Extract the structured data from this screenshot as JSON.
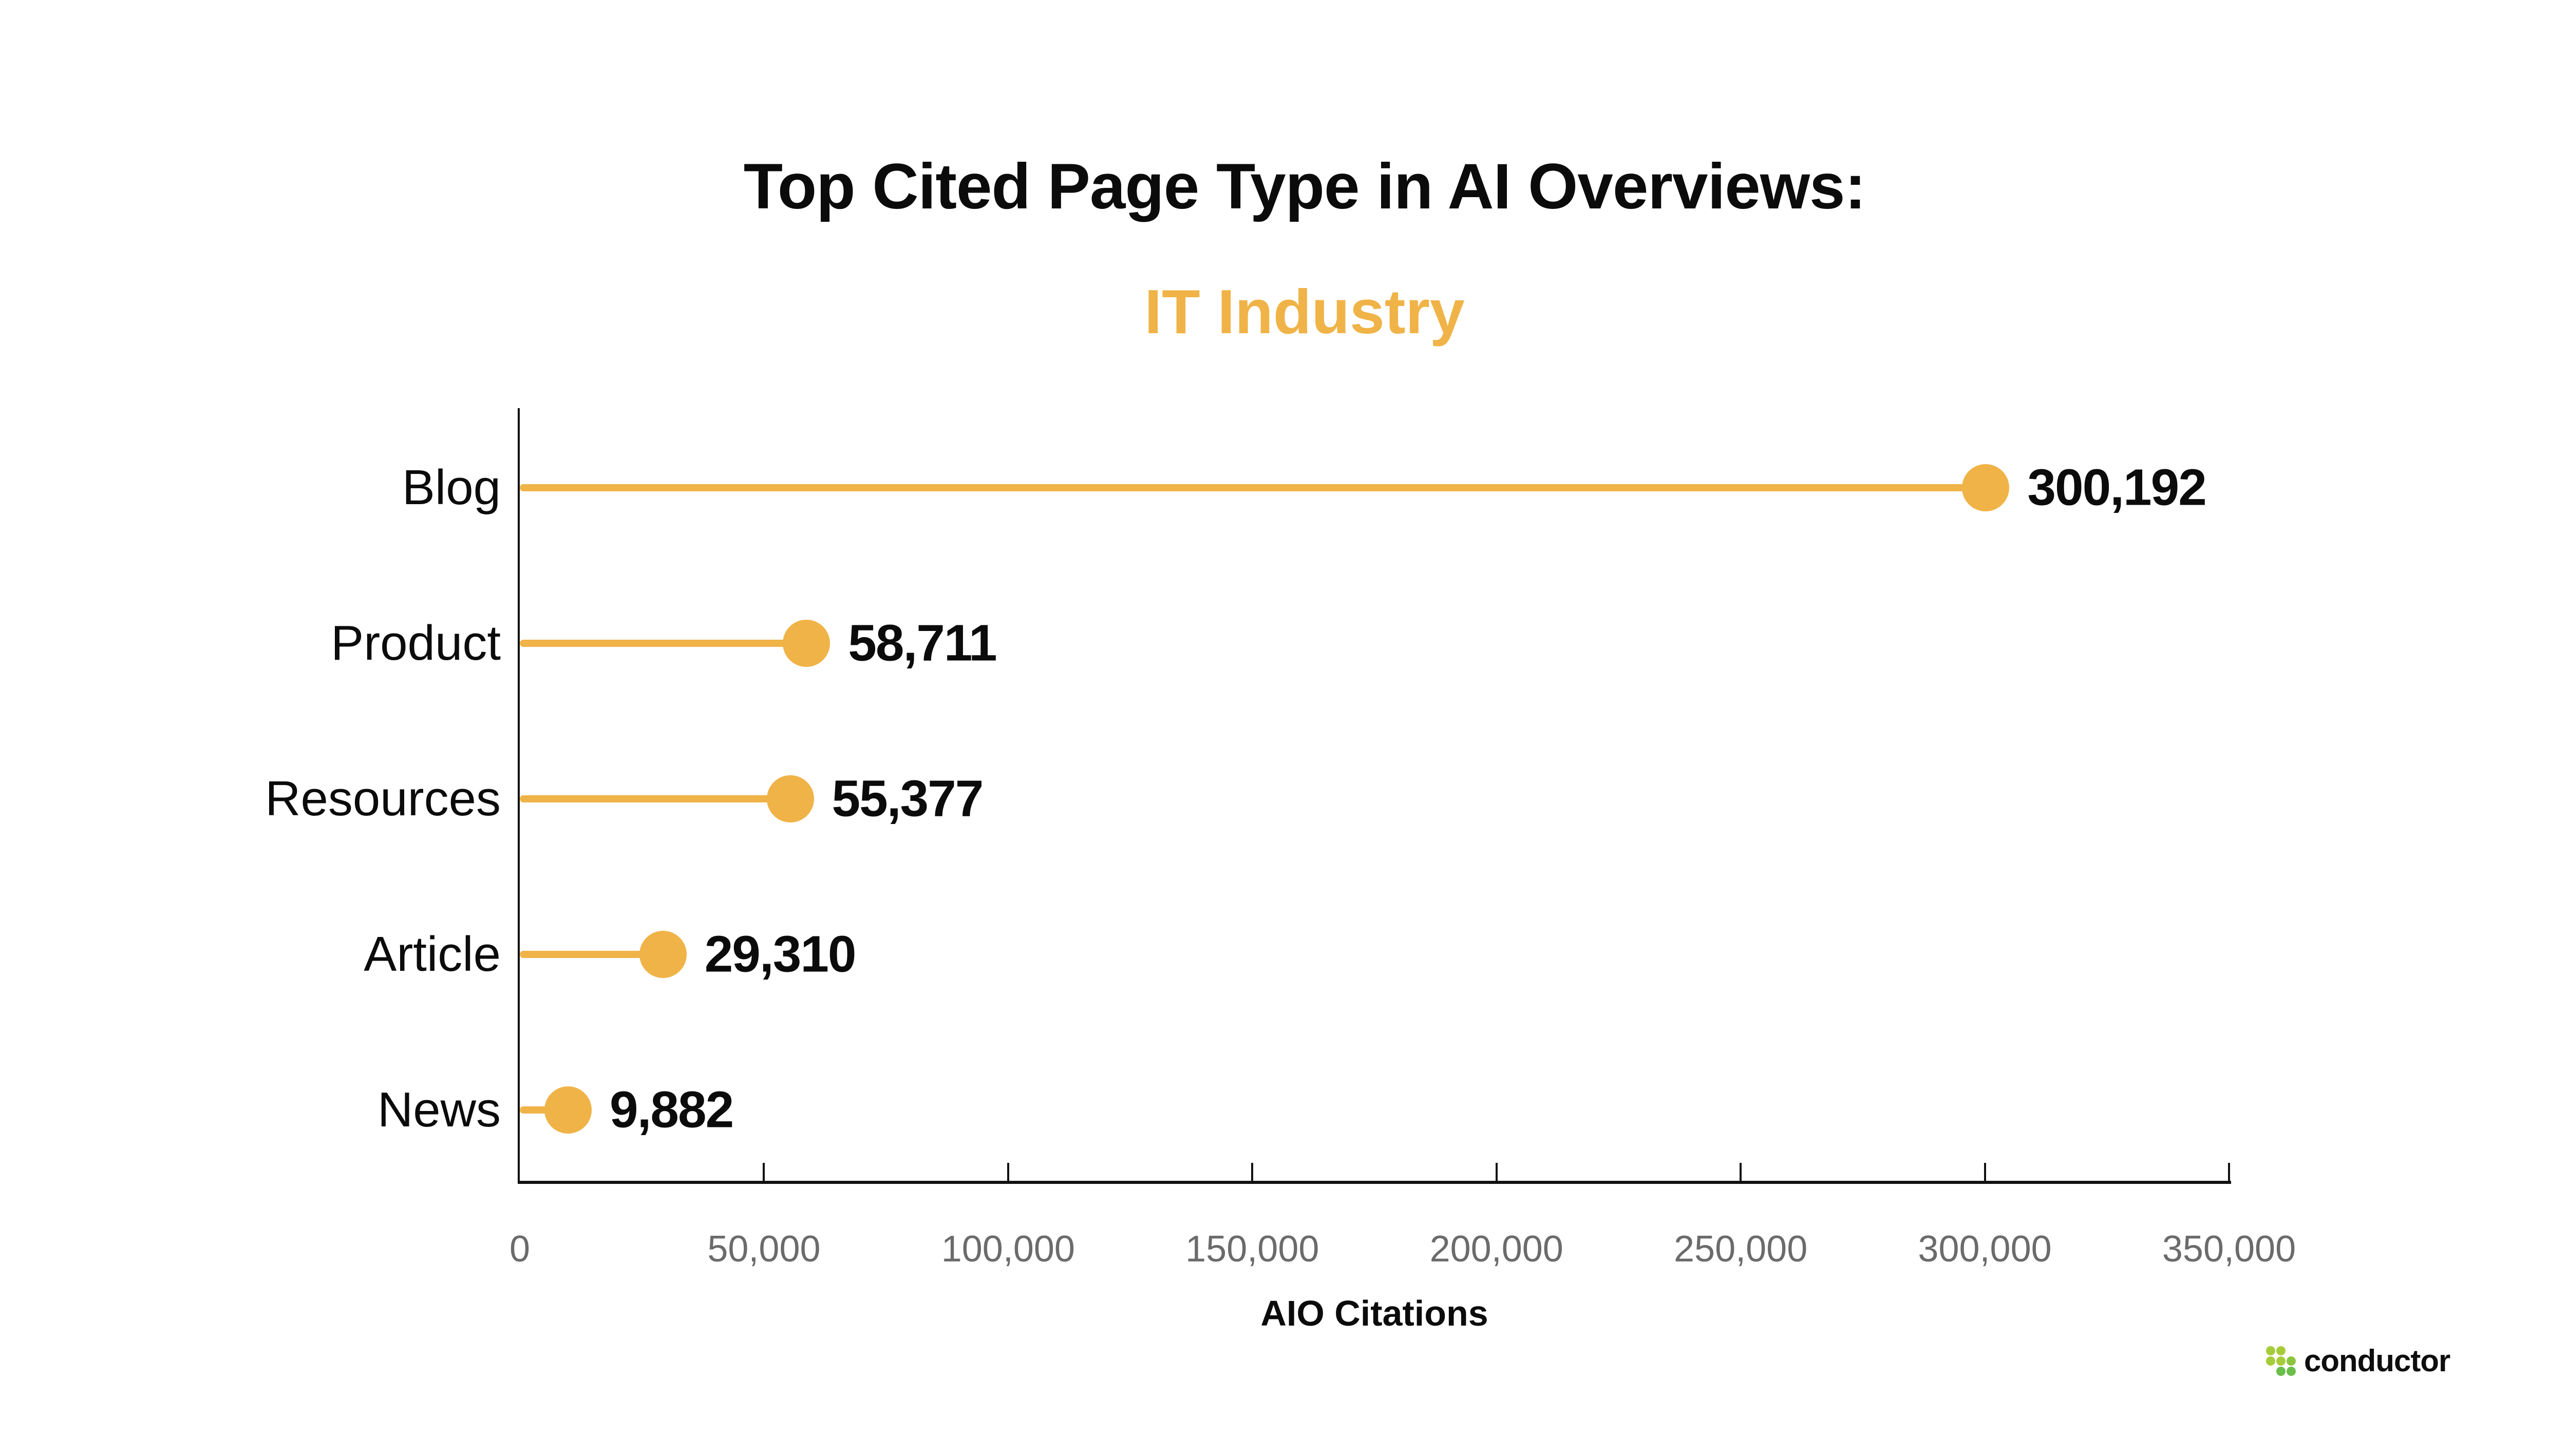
{
  "chart_data": {
    "type": "bar",
    "variant": "lollipop-horizontal",
    "title": "Top Cited Page Type in AI Overviews:",
    "subtitle": "IT Industry",
    "categories": [
      "Blog",
      "Product",
      "Resources",
      "Article",
      "News"
    ],
    "values": [
      300192,
      58711,
      55377,
      29310,
      9882
    ],
    "value_labels": [
      "300,192",
      "58,711",
      "55,377",
      "29,310",
      "9,882"
    ],
    "xlabel": "AIO Citations",
    "xlim": [
      0,
      350000
    ],
    "x_ticks": [
      0,
      50000,
      100000,
      150000,
      200000,
      250000,
      300000,
      350000
    ],
    "x_tick_labels": [
      "0",
      "50,000",
      "100,000",
      "150,000",
      "200,000",
      "250,000",
      "300,000",
      "350,000"
    ],
    "accent_color": "#F0B347",
    "axis_color": "#111111",
    "tick_label_color": "#6B6B6B",
    "category_label_color": "#0b0b0b",
    "value_label_color": "#0b0b0b",
    "grid": false,
    "legend": "none",
    "background": "#ffffff"
  },
  "branding": {
    "logo_text": "conductor",
    "logo_dots": [
      {
        "row": 0,
        "col": 0,
        "color": "#A7CC3B"
      },
      {
        "row": 0,
        "col": 1,
        "color": "#A7CC3B"
      },
      {
        "row": 1,
        "col": 0,
        "color": "#A7CC3B"
      },
      {
        "row": 1,
        "col": 1,
        "color": "#A7CC3B"
      },
      {
        "row": 1,
        "col": 2,
        "color": "#8BC53F"
      },
      {
        "row": 2,
        "col": 1,
        "color": "#6ABE4A"
      },
      {
        "row": 2,
        "col": 2,
        "color": "#6ABE4A"
      }
    ]
  }
}
